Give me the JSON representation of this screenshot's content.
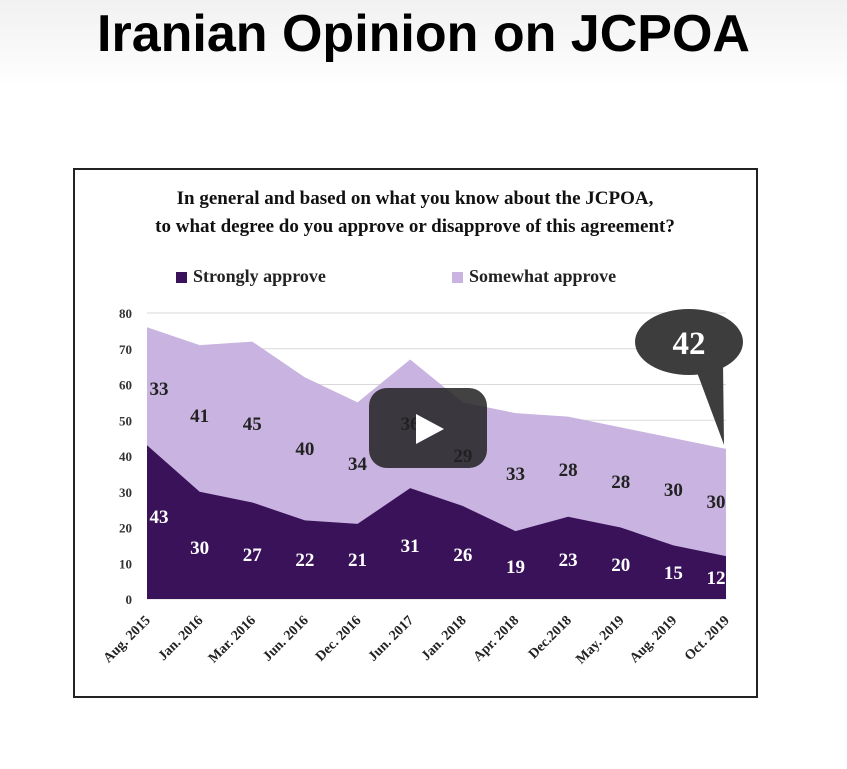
{
  "page": {
    "title": "Iranian Opinion on JCPOA"
  },
  "colors": {
    "strongly": "#3a1259",
    "somewhat": "#c9b3e1",
    "callout": "#3d3d3d",
    "play_button": "#212121"
  },
  "video": {
    "play_icon": "play-icon"
  },
  "chart_data": {
    "type": "area",
    "stacked": true,
    "title": "In general and based on what you know about the JCPOA, to what degree do you approve or disapprove of this agreement?",
    "categories": [
      "Aug. 2015",
      "Jan. 2016",
      "Mar. 2016",
      "Jun. 2016",
      "Dec. 2016",
      "Jun. 2017",
      "Jan. 2018",
      "Apr. 2018",
      "Dec.2018",
      "May. 2019",
      "Aug. 2019",
      "Oct. 2019"
    ],
    "series": [
      {
        "name": "Strongly approve",
        "values": [
          43,
          30,
          27,
          22,
          21,
          31,
          26,
          19,
          23,
          20,
          15,
          12
        ]
      },
      {
        "name": "Somewhat approve",
        "values": [
          33,
          41,
          45,
          40,
          34,
          36,
          29,
          33,
          28,
          28,
          30,
          30
        ]
      }
    ],
    "yticks": [
      "0",
      "10",
      "20",
      "30",
      "40",
      "50",
      "60",
      "70",
      "80"
    ],
    "ylim": [
      0,
      80
    ],
    "grid": true,
    "legend_position": "top",
    "callout": {
      "label": "42",
      "category": "Oct. 2019",
      "value": 42
    }
  }
}
